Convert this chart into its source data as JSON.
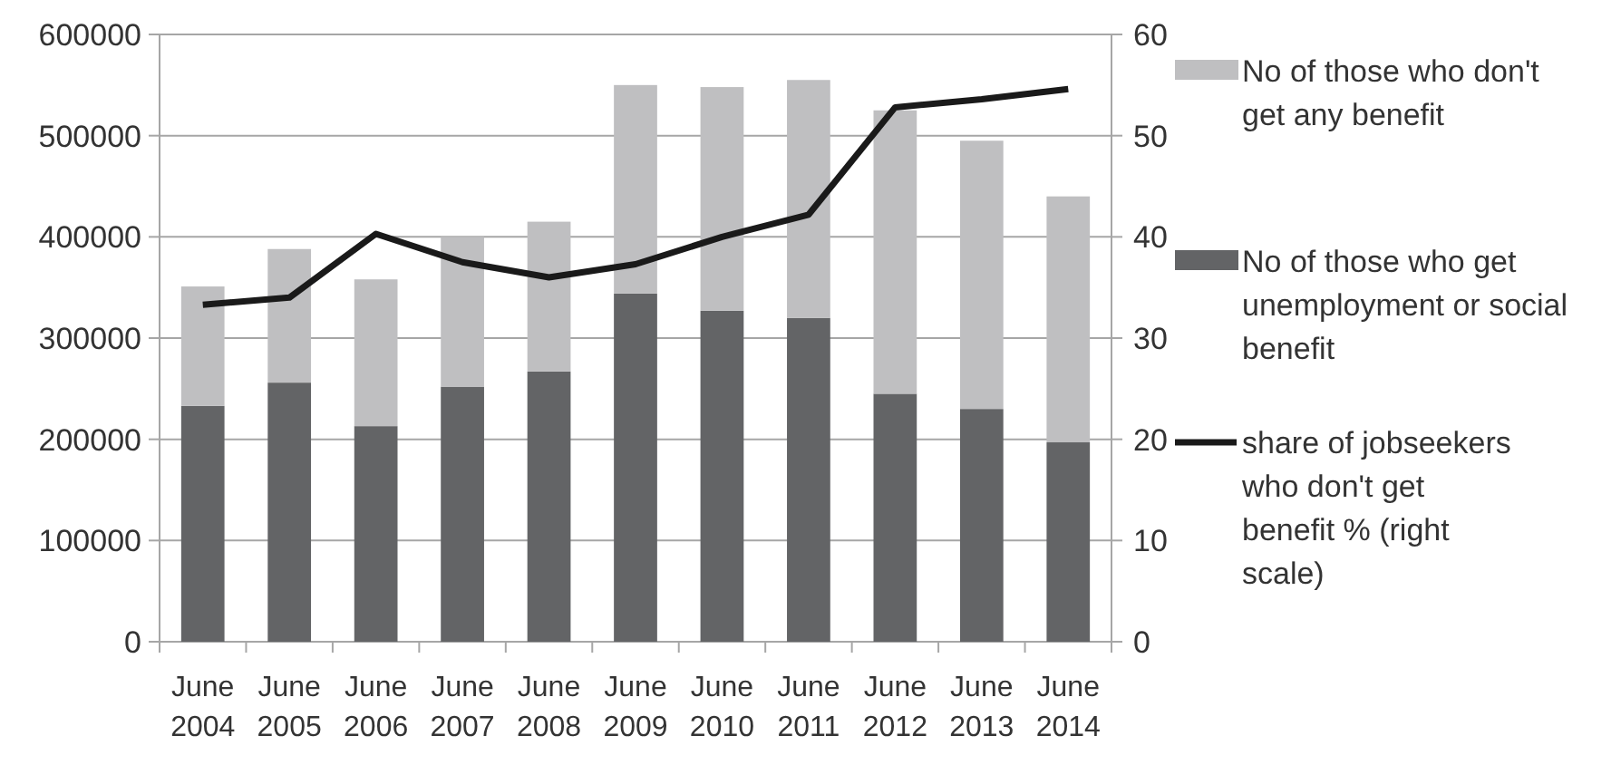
{
  "chart_data": {
    "type": "bar",
    "stacked": true,
    "categories": [
      "June 2004",
      "June 2005",
      "June 2006",
      "June 2007",
      "June 2008",
      "June 2009",
      "June 2010",
      "June 2011",
      "June 2012",
      "June 2013",
      "June 2014"
    ],
    "series": [
      {
        "name": "No of those who get unemployment or social benefit",
        "color": "#636466",
        "values": [
          233000,
          256000,
          213000,
          252000,
          267000,
          344000,
          327000,
          320000,
          245000,
          230000,
          197000
        ]
      },
      {
        "name": "No of those who don't get any benefit",
        "color": "#bfbfc1",
        "values": [
          118000,
          132000,
          145000,
          148000,
          148000,
          206000,
          221000,
          235000,
          280000,
          265000,
          243000
        ]
      },
      {
        "name": "share of jobseekers who don't get benefit % (right scale)",
        "type": "line",
        "axis": "y2",
        "color": "#1a1a1a",
        "values": [
          33.3,
          34,
          40.3,
          37.5,
          36,
          37.3,
          40,
          42.2,
          52.8,
          53.6,
          54.6
        ]
      }
    ],
    "ylim": [
      0,
      600000
    ],
    "yticks": [
      0,
      100000,
      200000,
      300000,
      400000,
      500000,
      600000
    ],
    "y2lim": [
      0,
      60
    ],
    "y2ticks": [
      0,
      10,
      20,
      30,
      40,
      50,
      60
    ],
    "grid": "y",
    "legend": "right",
    "marker": "none",
    "line_style": "solid"
  }
}
